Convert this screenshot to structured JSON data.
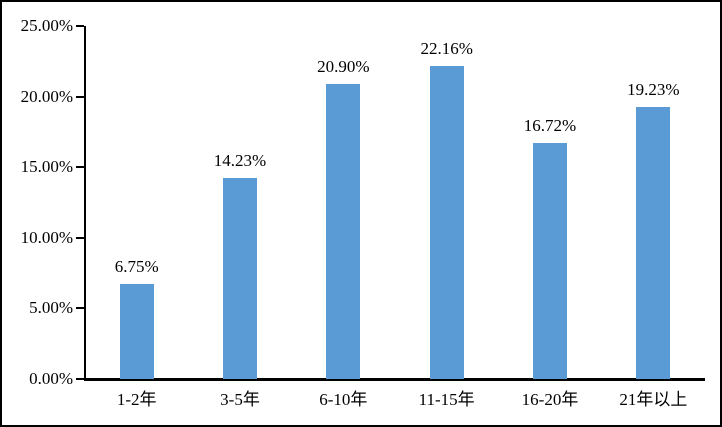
{
  "chart_data": {
    "type": "bar",
    "categories": [
      "1-2年",
      "3-5年",
      "6-10年",
      "11-15年",
      "16-20年",
      "21年以上"
    ],
    "values": [
      6.75,
      14.23,
      20.9,
      22.16,
      16.72,
      19.23
    ],
    "value_labels": [
      "6.75%",
      "14.23%",
      "20.90%",
      "22.16%",
      "16.72%",
      "19.23%"
    ],
    "ylim": [
      0,
      25
    ],
    "y_ticks": [
      {
        "value": 0,
        "label": "0.00%"
      },
      {
        "value": 5,
        "label": "5.00%"
      },
      {
        "value": 10,
        "label": "10.00%"
      },
      {
        "value": 15,
        "label": "15.00%"
      },
      {
        "value": 20,
        "label": "20.00%"
      },
      {
        "value": 25,
        "label": "25.00%"
      }
    ],
    "grid": false,
    "legend": false,
    "bar_color": "#5B9BD5",
    "axis_color": "#000000",
    "text_color": "#000000",
    "background_color": "#FFFFFF",
    "frame_border_color": "#000000"
  }
}
